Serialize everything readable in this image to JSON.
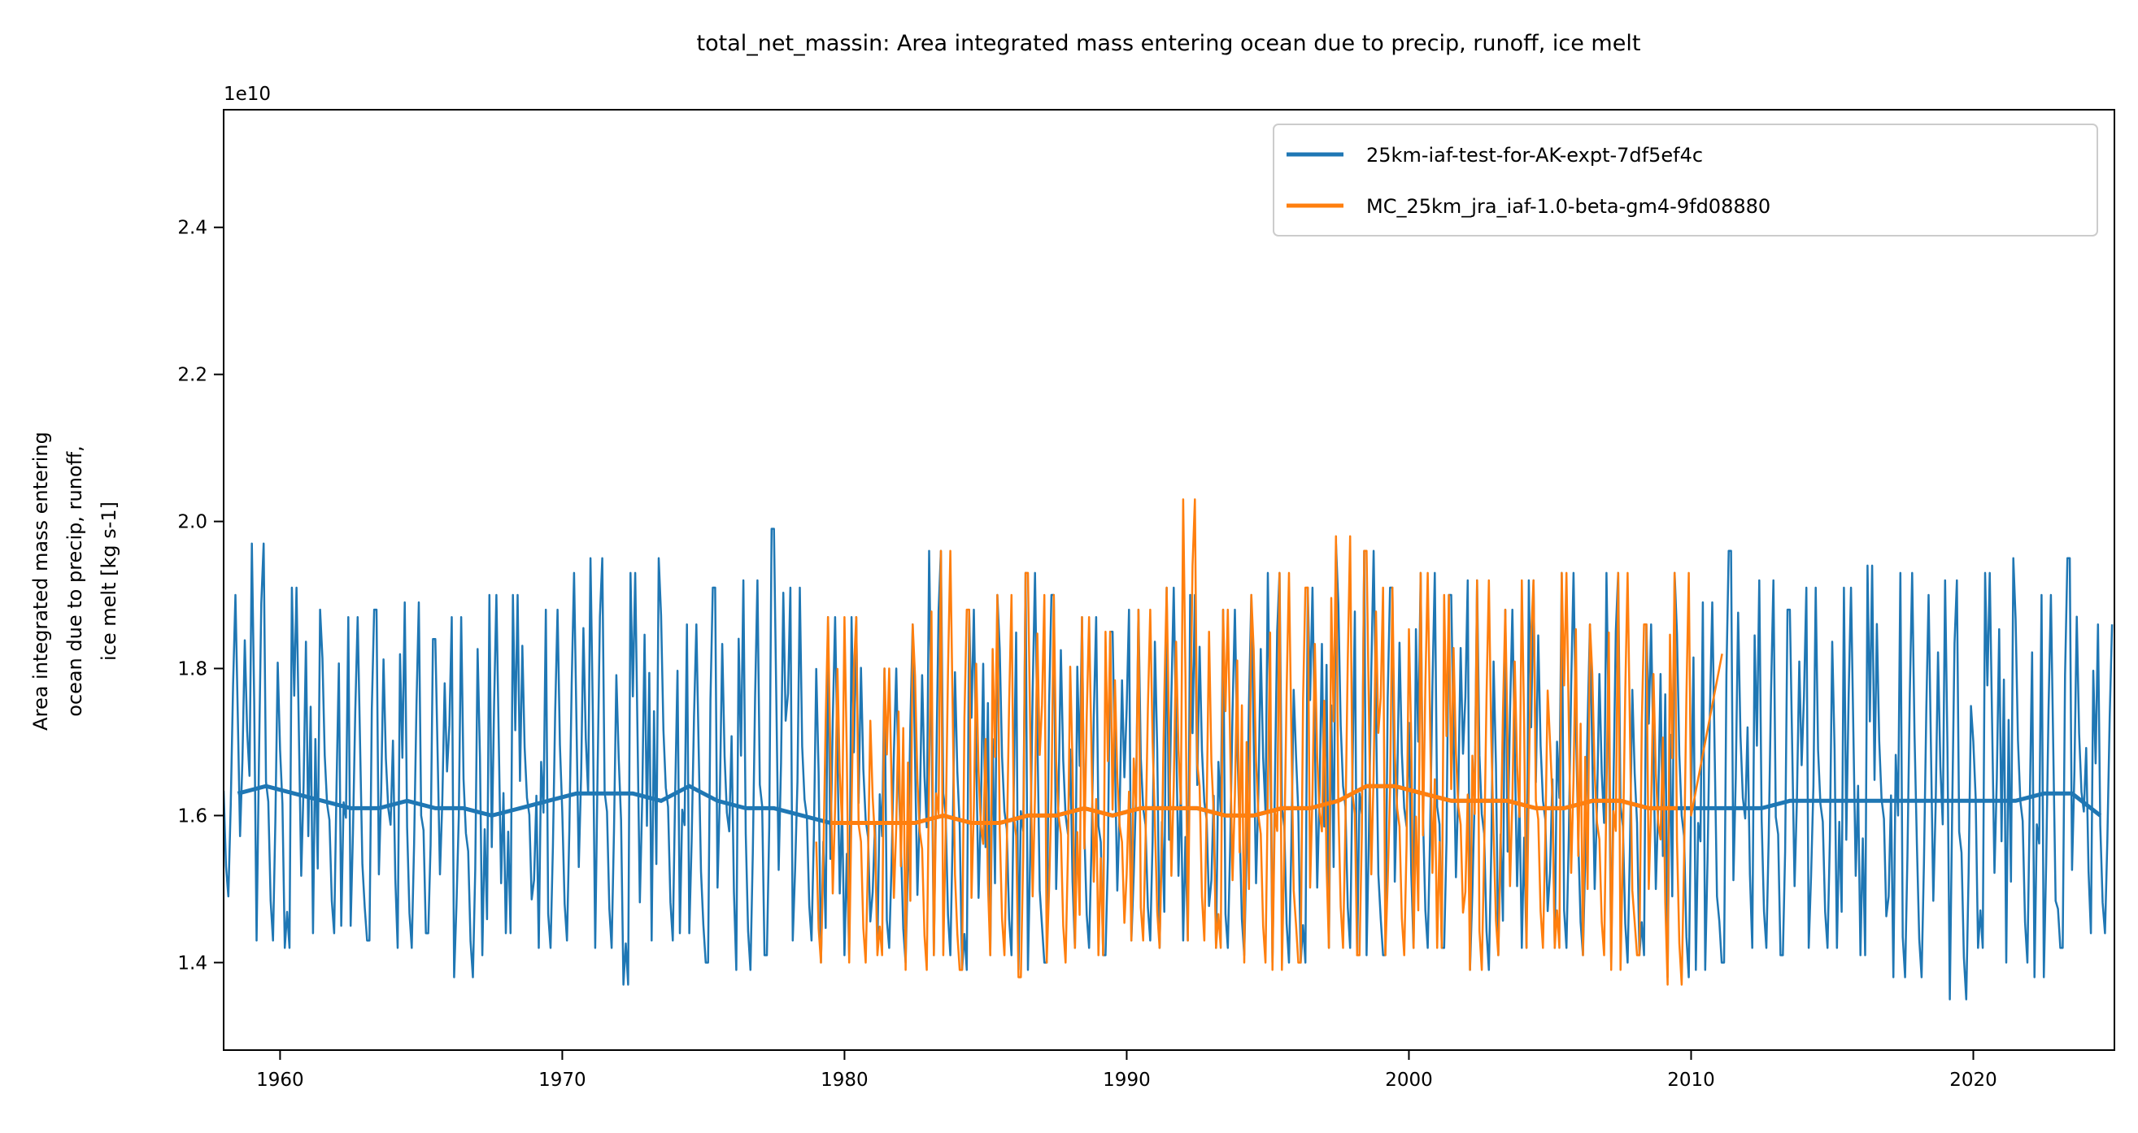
{
  "chart_data": {
    "type": "line",
    "title": "total_net_massin: Area integrated mass entering ocean due to precip, runoff, ice melt",
    "ylabel_lines": [
      "Area integrated mass entering",
      "ocean due to precip, runoff,",
      "ice melt [kg s-1]"
    ],
    "xlabel": "",
    "y_offset_label": "1e10",
    "xlim": [
      1958.0,
      2025.0
    ],
    "ylim": [
      1.281,
      2.56
    ],
    "xticks": [
      1960,
      1970,
      1980,
      1990,
      2000,
      2010,
      2020
    ],
    "yticks": [
      "1.4",
      "1.6",
      "1.8",
      "2.0",
      "2.2",
      "2.4"
    ],
    "grid": false,
    "legend_position": "top-right",
    "series": [
      {
        "name": "25km-iaf-test-for-AK-expt-7df5ef4c",
        "color": "#1f77b4",
        "start_year": 1958,
        "annual_max": [
          1.9,
          1.97,
          1.91,
          1.88,
          1.87,
          1.88,
          1.89,
          1.84,
          1.87,
          1.9,
          1.9,
          1.88,
          1.93,
          1.95,
          1.93,
          1.95,
          1.86,
          1.91,
          1.92,
          1.99,
          1.91,
          1.87,
          1.87,
          1.8,
          1.86,
          1.96,
          1.88,
          1.9,
          1.93,
          1.9,
          1.87,
          1.85,
          1.88,
          1.91,
          1.9,
          1.88,
          1.9,
          1.93,
          1.91,
          1.97,
          1.96,
          1.91,
          1.93,
          1.9,
          1.92,
          1.88,
          1.92,
          1.93,
          1.86,
          1.93,
          1.86,
          1.93,
          1.89,
          1.96,
          1.92,
          1.88,
          1.91,
          1.91,
          1.94,
          1.93,
          1.9,
          1.92,
          1.93,
          1.95,
          1.9,
          1.95,
          1.86
        ],
        "annual_min": [
          1.49,
          1.43,
          1.42,
          1.44,
          1.45,
          1.43,
          1.42,
          1.44,
          1.38,
          1.41,
          1.44,
          1.42,
          1.43,
          1.42,
          1.37,
          1.43,
          1.44,
          1.4,
          1.39,
          1.41,
          1.43,
          1.4,
          1.41,
          1.42,
          1.4,
          1.41,
          1.39,
          1.41,
          1.39,
          1.4,
          1.42,
          1.41,
          1.43,
          1.42,
          1.43,
          1.42,
          1.41,
          1.4,
          1.4,
          1.42,
          1.41,
          1.41,
          1.42,
          1.42,
          1.39,
          1.41,
          1.42,
          1.42,
          1.41,
          1.4,
          1.41,
          1.38,
          1.39,
          1.4,
          1.42,
          1.41,
          1.42,
          1.42,
          1.41,
          1.38,
          1.38,
          1.35,
          1.42,
          1.4,
          1.38,
          1.42,
          1.44
        ],
        "annual_mean": [
          1.63,
          1.64,
          1.63,
          1.62,
          1.61,
          1.61,
          1.62,
          1.61,
          1.61,
          1.6,
          1.61,
          1.62,
          1.63,
          1.63,
          1.63,
          1.62,
          1.64,
          1.62,
          1.61,
          1.61,
          1.6,
          1.59,
          1.59,
          1.59,
          1.59,
          1.6,
          1.59,
          1.59,
          1.6,
          1.6,
          1.61,
          1.6,
          1.61,
          1.61,
          1.61,
          1.6,
          1.6,
          1.61,
          1.61,
          1.62,
          1.64,
          1.64,
          1.63,
          1.62,
          1.62,
          1.62,
          1.61,
          1.61,
          1.62,
          1.62,
          1.61,
          1.61,
          1.61,
          1.61,
          1.61,
          1.62,
          1.62,
          1.62,
          1.62,
          1.62,
          1.62,
          1.62,
          1.62,
          1.62,
          1.63,
          1.63,
          1.6
        ]
      },
      {
        "name": "MC_25km_jra_iaf-1.0-beta-gm4-9fd08880",
        "color": "#ff7f0e",
        "start_year": 1979,
        "annual_max": [
          1.87,
          1.87,
          1.8,
          1.86,
          1.96,
          1.88,
          1.9,
          1.93,
          1.9,
          1.87,
          1.85,
          1.88,
          1.91,
          2.03,
          1.88,
          1.9,
          1.93,
          1.91,
          1.98,
          1.96,
          1.91,
          1.93,
          1.9,
          1.92,
          1.88,
          1.92,
          1.93,
          1.86,
          1.93,
          1.86,
          1.93
        ],
        "annual_min": [
          1.4,
          1.4,
          1.41,
          1.39,
          1.41,
          1.39,
          1.41,
          1.38,
          1.4,
          1.42,
          1.41,
          1.43,
          1.42,
          1.43,
          1.42,
          1.4,
          1.39,
          1.4,
          1.42,
          1.41,
          1.41,
          1.42,
          1.42,
          1.39,
          1.41,
          1.42,
          1.42,
          1.41,
          1.39,
          1.41,
          1.37
        ],
        "annual_mean": [
          1.59,
          1.59,
          1.59,
          1.59,
          1.6,
          1.59,
          1.59,
          1.6,
          1.6,
          1.61,
          1.6,
          1.61,
          1.61,
          1.61,
          1.6,
          1.6,
          1.61,
          1.61,
          1.62,
          1.64,
          1.64,
          1.63,
          1.62,
          1.62,
          1.62,
          1.61,
          1.61,
          1.62,
          1.62,
          1.61,
          1.61
        ],
        "end_segment": {
          "x": [
            2010.0,
            2011.1
          ],
          "y": [
            1.6,
            1.82
          ]
        }
      }
    ]
  }
}
